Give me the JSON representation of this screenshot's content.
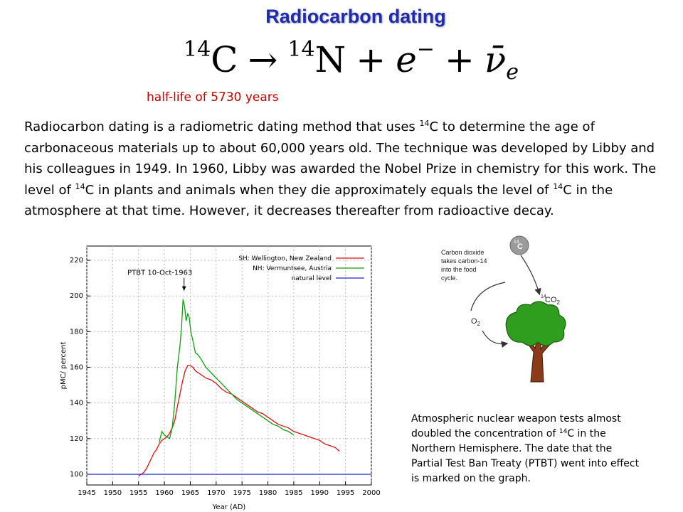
{
  "title": "Radiocarbon  dating",
  "equation": {
    "reactant_mass": "14",
    "reactant": "C",
    "arrow": "→",
    "product_mass": "14",
    "product": "N",
    "plus": "+",
    "electron": "e",
    "electron_charge": "−",
    "antineutrino": "ν̄",
    "antineutrino_sub": "e"
  },
  "half_life": "half-life of 5730 years",
  "paragraph": {
    "p1": "Radiocarbon dating is a radiometric dating method that uses ",
    "sup1": "14",
    "p2": "C to determine the age of carbonaceous materials up to about 60,000 years old. The technique was developed by Libby and his colleagues in 1949. In 1960, Libby was awarded the Nobel Prize in chemistry for this work. The level of ",
    "sup2": "14",
    "p3": "C in plants and animals when they die approximately equals the level of ",
    "sup3": "14",
    "p4": "C in the atmosphere at that time. However, it decreases thereafter from radioactive decay."
  },
  "chart_data": {
    "type": "line",
    "xlabel": "Year (AD)",
    "ylabel": "pMC/ percent",
    "xlim": [
      1945,
      2000
    ],
    "ylim": [
      94,
      228
    ],
    "x_ticks": [
      1945,
      1950,
      1955,
      1960,
      1965,
      1970,
      1975,
      1980,
      1985,
      1990,
      1995,
      2000
    ],
    "y_ticks": [
      100,
      120,
      140,
      160,
      180,
      200,
      220
    ],
    "grid": true,
    "legend_position": "top-right",
    "annotation": {
      "text": "PTBT 10-Oct-1963",
      "x": 1963.8,
      "y": 203
    },
    "series": [
      {
        "name": "SH: Wellington, New Zealand",
        "color": "#e01010",
        "x": [
          1955.0,
          1955.5,
          1956.0,
          1956.5,
          1957.0,
          1957.5,
          1958.0,
          1958.5,
          1959.0,
          1959.5,
          1960.0,
          1960.5,
          1961.0,
          1961.5,
          1962.0,
          1962.5,
          1963.0,
          1963.5,
          1964.0,
          1964.5,
          1965.0,
          1965.5,
          1966.0,
          1967.0,
          1968.0,
          1969.0,
          1970.0,
          1971.0,
          1972.0,
          1973.0,
          1974.0,
          1975.0,
          1976.0,
          1977.0,
          1978.0,
          1979.0,
          1980.0,
          1981.0,
          1982.0,
          1983.0,
          1984.0,
          1985.0,
          1986.0,
          1987.0,
          1988.0,
          1989.0,
          1990.0,
          1991.0,
          1992.0,
          1993.0,
          1993.8
        ],
        "y": [
          99,
          100,
          101,
          103,
          106,
          109,
          112,
          114,
          117,
          119,
          120,
          121,
          123,
          126,
          130,
          138,
          145,
          152,
          158,
          161,
          161,
          160,
          158,
          156,
          154,
          153,
          151,
          148,
          146,
          145,
          143,
          141,
          139,
          137,
          135,
          134,
          132,
          130,
          128,
          127,
          126,
          124,
          123,
          122,
          121,
          120,
          119,
          117,
          116,
          115,
          113
        ]
      },
      {
        "name": "NH: Vermuntsee, Austria",
        "color": "#10a010",
        "x": [
          1959.0,
          1959.5,
          1960.0,
          1960.5,
          1961.0,
          1961.5,
          1962.0,
          1962.5,
          1963.0,
          1963.3,
          1963.6,
          1963.9,
          1964.2,
          1964.5,
          1964.8,
          1965.1,
          1965.5,
          1966.0,
          1966.5,
          1967.0,
          1968.0,
          1969.0,
          1970.0,
          1971.0,
          1972.0,
          1973.0,
          1974.0,
          1975.0,
          1976.0,
          1977.0,
          1978.0,
          1979.0,
          1980.0,
          1981.0,
          1982.0,
          1983.0,
          1984.0,
          1985.0
        ],
        "y": [
          118,
          124,
          122,
          121,
          120,
          126,
          140,
          160,
          172,
          182,
          198,
          194,
          186,
          190,
          188,
          180,
          175,
          168,
          167,
          165,
          160,
          157,
          154,
          151,
          148,
          145,
          142,
          140,
          138,
          136,
          134,
          132,
          130,
          128,
          127,
          125,
          124,
          122
        ]
      },
      {
        "name": "natural level",
        "color": "#2020d0",
        "x": [
          1945,
          2000
        ],
        "y": [
          100,
          100
        ]
      }
    ]
  },
  "cycle": {
    "atom_label": "14C",
    "atom_mass": "14",
    "atom_symbol": "C",
    "text_lines": [
      "Carbon dioxide",
      "takes carbon-14",
      "into the food",
      "cycle."
    ],
    "co2_mass": "14",
    "co2_label": "CO",
    "co2_sub": "2",
    "o2_label": "O",
    "o2_sub": "2",
    "colors": {
      "tree_canopy": "#2f9e1f",
      "tree_trunk": "#8b3a1a",
      "atom": "#9a9a9a"
    }
  },
  "caption": {
    "c1": "Atmospheric nuclear weapon tests almost doubled the concentration of ",
    "sup": "14",
    "c2": "C in the Northern Hemisphere. The date that the Partial Test Ban Treaty (PTBT) went into effect is marked on the graph."
  }
}
